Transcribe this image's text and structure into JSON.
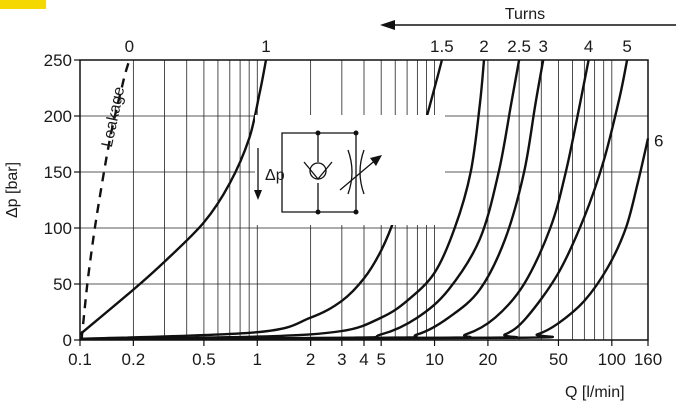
{
  "chart_data": {
    "type": "line",
    "title": "",
    "xlabel": "Q [l/min]",
    "ylabel": "Δp [bar]",
    "x_scale": "log",
    "xlim": [
      0.1,
      160
    ],
    "ylim": [
      0,
      250
    ],
    "x_ticks": [
      {
        "value": 0.1,
        "label": "0.1"
      },
      {
        "value": 0.2,
        "label": "0.2"
      },
      {
        "value": 0.5,
        "label": "0.5"
      },
      {
        "value": 1,
        "label": "1"
      },
      {
        "value": 2,
        "label": "2"
      },
      {
        "value": 3,
        "label": "3"
      },
      {
        "value": 4,
        "label": "4"
      },
      {
        "value": 5,
        "label": "5"
      },
      {
        "value": 10,
        "label": "10"
      },
      {
        "value": 20,
        "label": "20"
      },
      {
        "value": 50,
        "label": "50"
      },
      {
        "value": 100,
        "label": "100"
      },
      {
        "value": 160,
        "label": "160"
      }
    ],
    "x_gridlines": [
      0.1,
      0.2,
      0.3,
      0.4,
      0.5,
      0.6,
      0.7,
      0.8,
      0.9,
      1,
      2,
      3,
      4,
      5,
      6,
      7,
      8,
      9,
      10,
      20,
      30,
      40,
      50,
      60,
      70,
      80,
      90,
      100,
      160
    ],
    "y_ticks": [
      0,
      50,
      100,
      150,
      200,
      250
    ],
    "grid": true,
    "top_axis_label": "Turns",
    "series": [
      {
        "name": "Leakage",
        "style": "dashed",
        "x": [
          0.102,
          0.11,
          0.12,
          0.13,
          0.14,
          0.15,
          0.16,
          0.17,
          0.18,
          0.19
        ],
        "y": [
          0,
          50,
          95,
          130,
          160,
          185,
          205,
          222,
          238,
          250
        ]
      },
      {
        "name": "1",
        "style": "solid",
        "x": [
          0.1,
          0.2,
          0.3,
          0.5,
          0.7,
          0.9,
          1.03,
          1.12
        ],
        "y": [
          5,
          45,
          70,
          105,
          140,
          180,
          220,
          250
        ]
      },
      {
        "name": "1.5",
        "style": "solid",
        "x": [
          0.1,
          1,
          2,
          3,
          4,
          5,
          6,
          8,
          10,
          11
        ],
        "y": [
          1,
          7,
          20,
          35,
          55,
          80,
          110,
          170,
          225,
          250
        ]
      },
      {
        "name": "2",
        "style": "solid",
        "x": [
          0.1,
          1,
          3,
          5,
          7,
          10,
          13,
          16,
          18,
          19
        ],
        "y": [
          1,
          3,
          8,
          20,
          35,
          60,
          100,
          150,
          210,
          250
        ]
      },
      {
        "name": "2.5",
        "style": "solid",
        "x": [
          0.1,
          3,
          5,
          8,
          12,
          18,
          23,
          27,
          30
        ],
        "y": [
          1,
          2,
          5,
          20,
          45,
          90,
          150,
          210,
          250
        ]
      },
      {
        "name": "3",
        "style": "solid",
        "x": [
          0.1,
          5,
          8,
          12,
          18,
          25,
          32,
          37,
          41
        ],
        "y": [
          1,
          2,
          5,
          20,
          45,
          90,
          150,
          210,
          250
        ]
      },
      {
        "name": "4",
        "style": "solid",
        "x": [
          0.1,
          10,
          15,
          22,
          32,
          45,
          55,
          66,
          74
        ],
        "y": [
          1,
          2,
          5,
          20,
          50,
          100,
          150,
          210,
          250
        ]
      },
      {
        "name": "5",
        "style": "solid",
        "x": [
          0.1,
          18,
          25,
          33,
          50,
          70,
          90,
          110,
          122
        ],
        "y": [
          1,
          2,
          5,
          20,
          60,
          110,
          160,
          215,
          250
        ]
      },
      {
        "name": "6",
        "style": "solid",
        "x": [
          0.1,
          28,
          38,
          50,
          70,
          95,
          120,
          140,
          160
        ],
        "y": [
          1,
          2,
          5,
          15,
          35,
          65,
          100,
          140,
          180
        ]
      }
    ],
    "series_labels": [
      {
        "name": "0",
        "label": "0"
      },
      {
        "name": "1",
        "label": "1"
      },
      {
        "name": "1.5",
        "label": "1.5"
      },
      {
        "name": "2",
        "label": "2"
      },
      {
        "name": "2.5",
        "label": "2.5"
      },
      {
        "name": "3",
        "label": "3"
      },
      {
        "name": "4",
        "label": "4"
      },
      {
        "name": "5",
        "label": "5"
      },
      {
        "name": "6",
        "label": "6"
      }
    ],
    "annotations": [
      {
        "text": "Leakage"
      },
      {
        "text": "Δp"
      }
    ]
  }
}
